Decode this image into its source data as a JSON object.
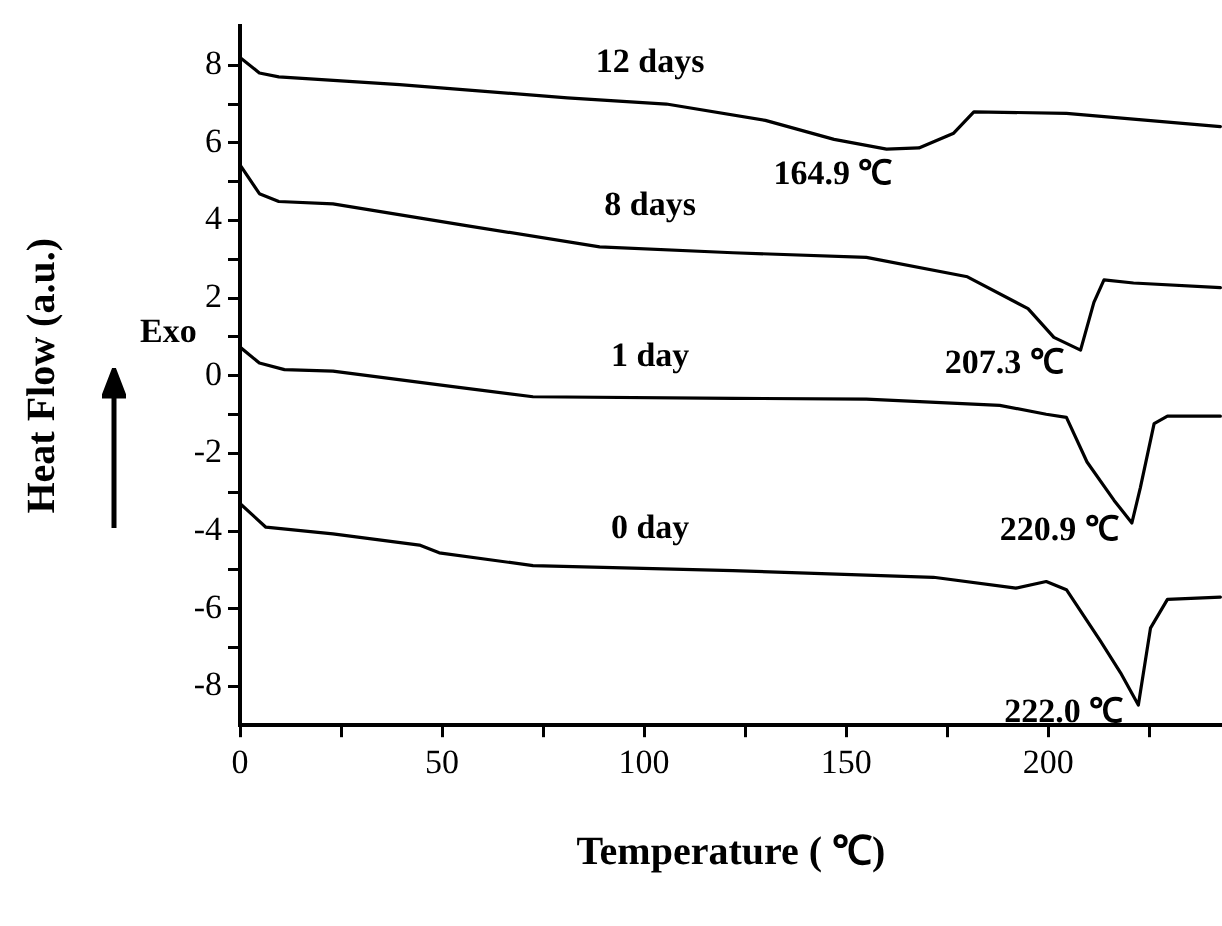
{
  "chart_data": {
    "type": "line",
    "xlabel": "Temperature ( ℃)",
    "ylabel": "Heat Flow (a.u.)",
    "xlim": [
      0,
      243
    ],
    "ylim": [
      -9,
      9
    ],
    "xticks": [
      0,
      {
        "value": 25,
        "label": null
      },
      50,
      {
        "value": 75,
        "label": null
      },
      100,
      {
        "value": 125,
        "label": null
      },
      150,
      {
        "value": 175,
        "label": null
      },
      200,
      {
        "value": 225,
        "label": null
      }
    ],
    "yticks": [
      -8,
      {
        "value": -7,
        "label": null
      },
      -6,
      {
        "value": -5,
        "label": null
      },
      -4,
      {
        "value": -3,
        "label": null
      },
      -2,
      {
        "value": -1,
        "label": null
      },
      0,
      {
        "value": 1,
        "label": null
      },
      2,
      {
        "value": 3,
        "label": null
      },
      4,
      {
        "value": 5,
        "label": null
      },
      6,
      {
        "value": 7,
        "label": null
      },
      8
    ],
    "grid": false,
    "legend": false,
    "marker": "none",
    "line_style": "solid",
    "series": [
      {
        "name": "12 days",
        "color": "#000000",
        "x": [
          0,
          4.8,
          9.6,
          39.5,
          81,
          105.5,
          130,
          147,
          160,
          168,
          176.6,
          181.6,
          204.5,
          242.6
        ],
        "values": [
          8.2,
          7.8,
          7.7,
          7.5,
          7.16,
          7.0,
          6.58,
          6.09,
          5.84,
          5.87,
          6.25,
          6.8,
          6.76,
          6.42
        ]
      },
      {
        "name": "8 days",
        "color": "#000000",
        "x": [
          0,
          4.8,
          9.6,
          23,
          56,
          89,
          122,
          155,
          180,
          195,
          201.4,
          208,
          211.3,
          213.8,
          221.1,
          242.6
        ],
        "values": [
          5.43,
          4.69,
          4.49,
          4.43,
          3.87,
          3.32,
          3.17,
          3.05,
          2.55,
          1.73,
          0.99,
          0.66,
          1.89,
          2.47,
          2.39,
          2.27
        ]
      },
      {
        "name": "1 day",
        "color": "#000000",
        "x": [
          0,
          4.8,
          11,
          23,
          52.7,
          72.5,
          122,
          155,
          188,
          199.5,
          204.5,
          209.6,
          216.3,
          220.7,
          222.8,
          226.2,
          229.5,
          242.6
        ],
        "values": [
          0.74,
          0.33,
          0.16,
          0.12,
          -0.28,
          -0.54,
          -0.58,
          -0.6,
          -0.76,
          -0.99,
          -1.07,
          -2.22,
          -3.21,
          -3.79,
          -2.88,
          -1.23,
          -1.04,
          -1.04
        ]
      },
      {
        "name": "0 day",
        "color": "#000000",
        "x": [
          0,
          6.4,
          23,
          44.4,
          49.3,
          72.5,
          122,
          171.6,
          192,
          199.5,
          204.5,
          212.9,
          217.9,
          222.3,
          225.3,
          229.5,
          242.6
        ],
        "values": [
          -3.29,
          -3.9,
          -4.07,
          -4.36,
          -4.56,
          -4.89,
          -5.02,
          -5.19,
          -5.47,
          -5.3,
          -5.51,
          -6.83,
          -7.65,
          -8.48,
          -6.5,
          -5.76,
          -5.7
        ]
      }
    ],
    "annotations": [
      "Exo",
      {
        "text": "164.9 ℃",
        "x": 164.9,
        "y": 5.84
      },
      {
        "text": "207.3 ℃",
        "x": 207.3,
        "y": 0.66
      },
      {
        "text": "220.9 ℃",
        "x": 220.9,
        "y": -3.79
      },
      {
        "text": "222.0 ℃",
        "x": 222.0,
        "y": -8.48
      }
    ]
  }
}
